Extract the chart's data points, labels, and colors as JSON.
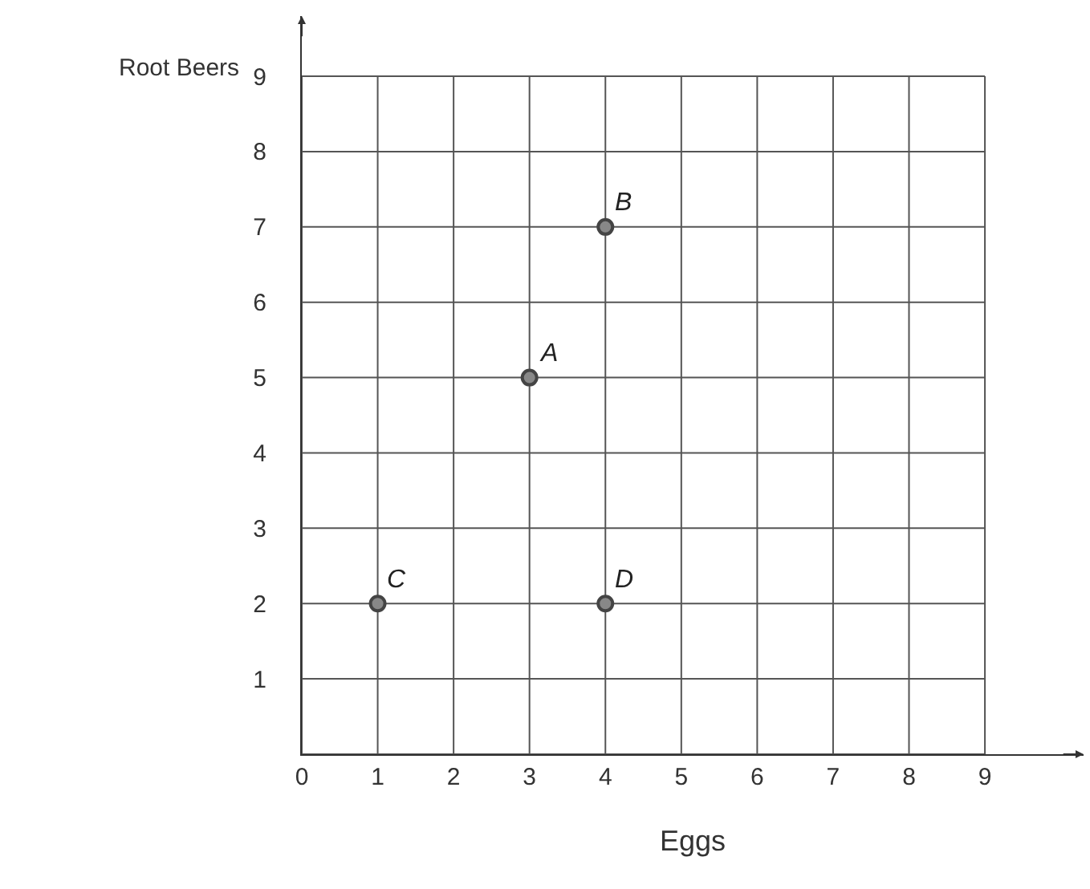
{
  "chart_data": {
    "type": "scatter",
    "xlabel": "Eggs",
    "ylabel": "Root Beers",
    "x": [
      3,
      4,
      1,
      4
    ],
    "values": [
      5,
      7,
      2,
      2
    ],
    "color": "#444444",
    "marker": "circle",
    "xlim": [
      0,
      10.3
    ],
    "ylim": [
      0,
      9.8
    ],
    "xticks": [
      0,
      1,
      2,
      3,
      4,
      5,
      6,
      7,
      8,
      9
    ],
    "yticks": [
      {
        "value": 0,
        "label": null
      },
      1,
      2,
      3,
      4,
      5,
      6,
      7,
      8,
      9
    ],
    "grid": true,
    "annotations": [
      {
        "text": "A",
        "x": 3,
        "y": 5
      },
      {
        "text": "B",
        "x": 4,
        "y": 7
      },
      {
        "text": "C",
        "x": 1,
        "y": 2
      },
      {
        "text": "D",
        "x": 4,
        "y": 2
      }
    ]
  }
}
